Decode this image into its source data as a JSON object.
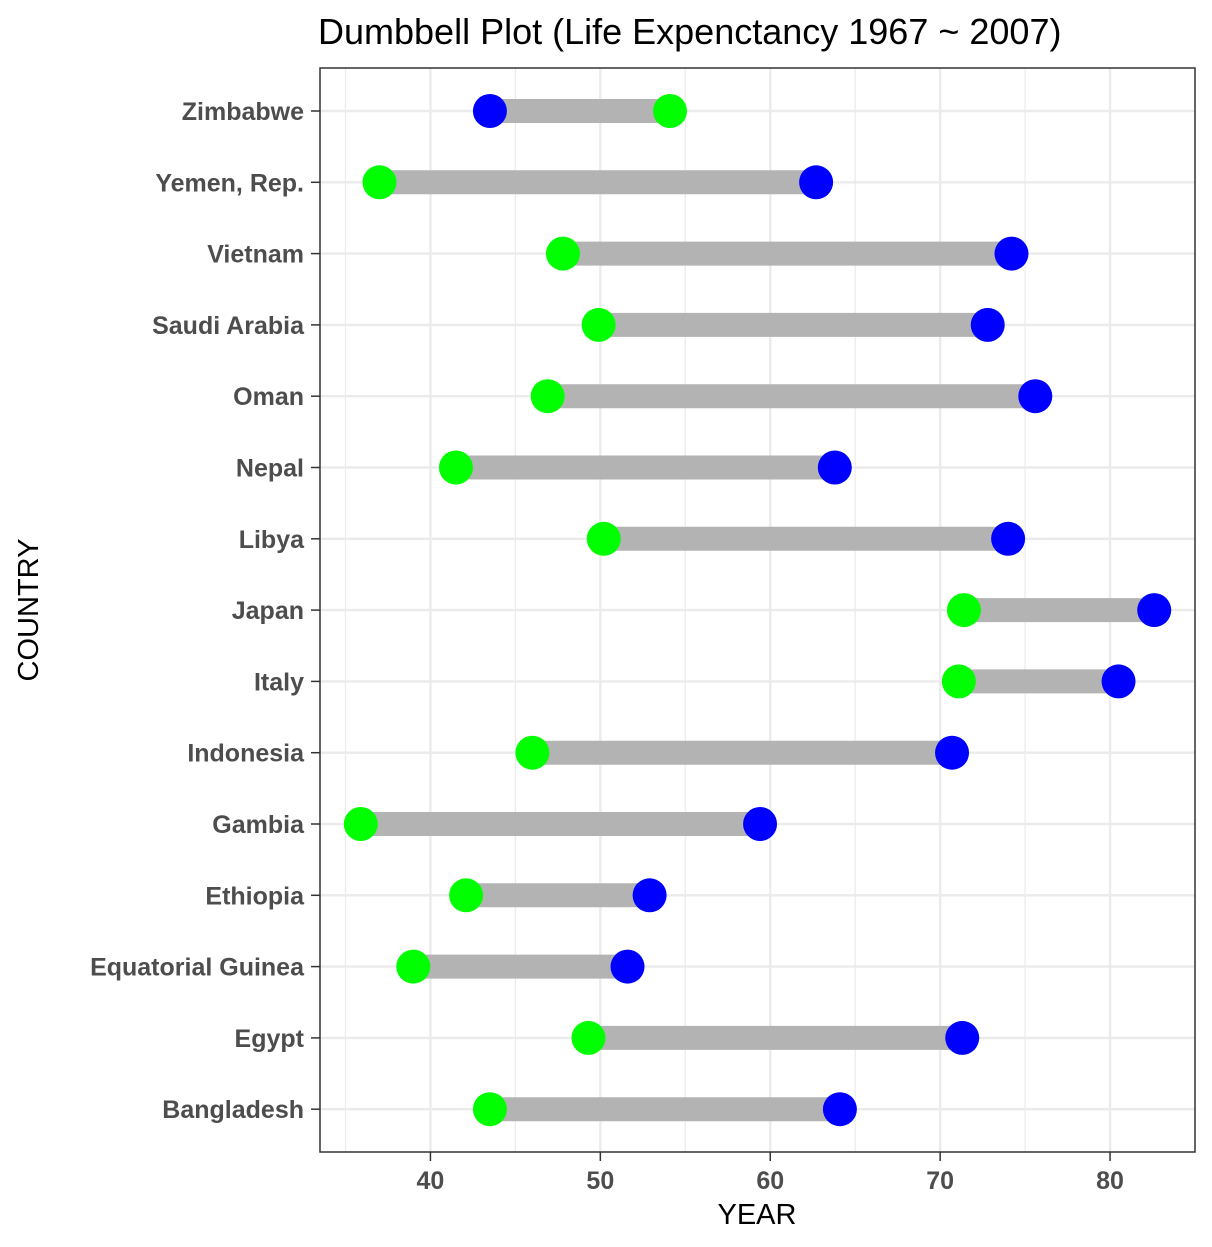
{
  "chart_data": {
    "type": "dumbbell",
    "title": "Dumbbell Plot (Life Expenctancy 1967 ~ 2007)",
    "xlabel": "YEAR",
    "ylabel": "COUNTRY",
    "xlim": [
      33.5,
      85
    ],
    "xticks": [
      40,
      50,
      60,
      70,
      80
    ],
    "grid": true,
    "legend": "none",
    "colors": {
      "start": "#00ff00",
      "end": "#0000ff",
      "segment": "#b3b3b3",
      "grid": "#ebebeb",
      "panel_border": "#333333"
    },
    "countries": [
      {
        "name": "Zimbabwe",
        "start": 54.1,
        "end": 43.5
      },
      {
        "name": "Yemen, Rep.",
        "start": 37.0,
        "end": 62.7
      },
      {
        "name": "Vietnam",
        "start": 47.8,
        "end": 74.2
      },
      {
        "name": "Saudi Arabia",
        "start": 49.9,
        "end": 72.8
      },
      {
        "name": "Oman",
        "start": 46.9,
        "end": 75.6
      },
      {
        "name": "Nepal",
        "start": 41.5,
        "end": 63.8
      },
      {
        "name": "Libya",
        "start": 50.2,
        "end": 74.0
      },
      {
        "name": "Japan",
        "start": 71.4,
        "end": 82.6
      },
      {
        "name": "Italy",
        "start": 71.1,
        "end": 80.5
      },
      {
        "name": "Indonesia",
        "start": 46.0,
        "end": 70.7
      },
      {
        "name": "Gambia",
        "start": 35.9,
        "end": 59.4
      },
      {
        "name": "Ethiopia",
        "start": 42.1,
        "end": 52.9
      },
      {
        "name": "Equatorial Guinea",
        "start": 38.99,
        "end": 51.6
      },
      {
        "name": "Egypt",
        "start": 49.3,
        "end": 71.3
      },
      {
        "name": "Bangladesh",
        "start": 43.5,
        "end": 64.1
      }
    ]
  }
}
